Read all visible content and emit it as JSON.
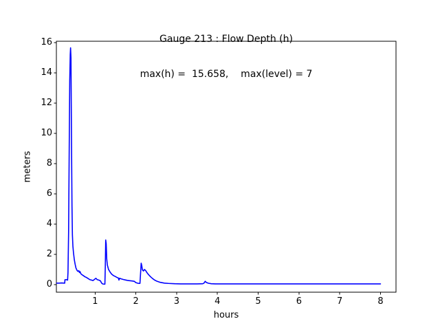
{
  "chart_data": {
    "type": "line",
    "title": "Gauge 213 : Flow Depth (h)",
    "subtitle": "max(h) =  15.658,    max(level) = 7",
    "max_h": 15.658,
    "max_level": 7,
    "xlabel": "hours",
    "ylabel": "meters",
    "xlim": [
      0.05,
      8.38
    ],
    "ylim": [
      -0.5,
      16.09
    ],
    "xticks": [
      1,
      2,
      3,
      4,
      5,
      6,
      7,
      8
    ],
    "yticks": [
      0,
      2,
      4,
      6,
      8,
      10,
      12,
      14,
      16
    ],
    "grid": false,
    "legend": false,
    "line_color": "#0000ff",
    "axis_color": "#000000",
    "background_color": "#ffffff",
    "series": [
      {
        "name": "flow-depth-h",
        "points": [
          [
            0.06,
            0.1
          ],
          [
            0.12,
            0.1
          ],
          [
            0.18,
            0.11
          ],
          [
            0.24,
            0.1
          ],
          [
            0.255,
            0.1
          ],
          [
            0.26,
            0.32
          ],
          [
            0.3,
            0.33
          ],
          [
            0.325,
            0.3
          ],
          [
            0.335,
            0.8
          ],
          [
            0.35,
            3.5
          ],
          [
            0.365,
            9.0
          ],
          [
            0.378,
            13.5
          ],
          [
            0.39,
            15.2
          ],
          [
            0.398,
            15.658
          ],
          [
            0.408,
            15.0
          ],
          [
            0.415,
            12.0
          ],
          [
            0.424,
            8.5
          ],
          [
            0.433,
            5.2
          ],
          [
            0.443,
            3.3
          ],
          [
            0.455,
            2.55
          ],
          [
            0.47,
            2.1
          ],
          [
            0.49,
            1.65
          ],
          [
            0.51,
            1.35
          ],
          [
            0.53,
            1.1
          ],
          [
            0.555,
            0.95
          ],
          [
            0.575,
            0.88
          ],
          [
            0.6,
            0.92
          ],
          [
            0.615,
            0.8
          ],
          [
            0.63,
            0.86
          ],
          [
            0.65,
            0.72
          ],
          [
            0.68,
            0.65
          ],
          [
            0.71,
            0.6
          ],
          [
            0.75,
            0.52
          ],
          [
            0.79,
            0.47
          ],
          [
            0.83,
            0.4
          ],
          [
            0.87,
            0.33
          ],
          [
            0.91,
            0.3
          ],
          [
            0.95,
            0.27
          ],
          [
            0.99,
            0.36
          ],
          [
            1.02,
            0.42
          ],
          [
            1.05,
            0.33
          ],
          [
            1.09,
            0.3
          ],
          [
            1.13,
            0.25
          ],
          [
            1.16,
            0.1
          ],
          [
            1.19,
            0.04
          ],
          [
            1.24,
            0.03
          ],
          [
            1.25,
            1.2
          ],
          [
            1.26,
            2.95
          ],
          [
            1.272,
            2.7
          ],
          [
            1.285,
            1.7
          ],
          [
            1.3,
            1.3
          ],
          [
            1.33,
            1.0
          ],
          [
            1.37,
            0.82
          ],
          [
            1.41,
            0.68
          ],
          [
            1.45,
            0.6
          ],
          [
            1.5,
            0.53
          ],
          [
            1.54,
            0.47
          ],
          [
            1.57,
            0.44
          ],
          [
            1.585,
            0.3
          ],
          [
            1.6,
            0.42
          ],
          [
            1.64,
            0.38
          ],
          [
            1.69,
            0.34
          ],
          [
            1.74,
            0.31
          ],
          [
            1.79,
            0.28
          ],
          [
            1.85,
            0.26
          ],
          [
            1.91,
            0.24
          ],
          [
            1.96,
            0.22
          ],
          [
            2.0,
            0.13
          ],
          [
            2.05,
            0.09
          ],
          [
            2.1,
            0.08
          ],
          [
            2.115,
            0.75
          ],
          [
            2.13,
            1.42
          ],
          [
            2.145,
            1.25
          ],
          [
            2.16,
            0.98
          ],
          [
            2.185,
            0.9
          ],
          [
            2.21,
            1.0
          ],
          [
            2.24,
            0.93
          ],
          [
            2.27,
            0.8
          ],
          [
            2.31,
            0.66
          ],
          [
            2.36,
            0.52
          ],
          [
            2.41,
            0.4
          ],
          [
            2.46,
            0.3
          ],
          [
            2.52,
            0.22
          ],
          [
            2.6,
            0.15
          ],
          [
            2.7,
            0.1
          ],
          [
            2.8,
            0.08
          ],
          [
            2.95,
            0.06
          ],
          [
            3.1,
            0.05
          ],
          [
            3.3,
            0.05
          ],
          [
            3.5,
            0.05
          ],
          [
            3.64,
            0.06
          ],
          [
            3.67,
            0.1
          ],
          [
            3.7,
            0.22
          ],
          [
            3.73,
            0.14
          ],
          [
            3.78,
            0.09
          ],
          [
            3.85,
            0.06
          ],
          [
            3.95,
            0.05
          ],
          [
            4.2,
            0.05
          ],
          [
            4.6,
            0.05
          ],
          [
            5.0,
            0.05
          ],
          [
            5.5,
            0.05
          ],
          [
            6.0,
            0.05
          ],
          [
            6.5,
            0.05
          ],
          [
            7.0,
            0.05
          ],
          [
            7.5,
            0.05
          ],
          [
            8.0,
            0.05
          ]
        ]
      }
    ]
  }
}
